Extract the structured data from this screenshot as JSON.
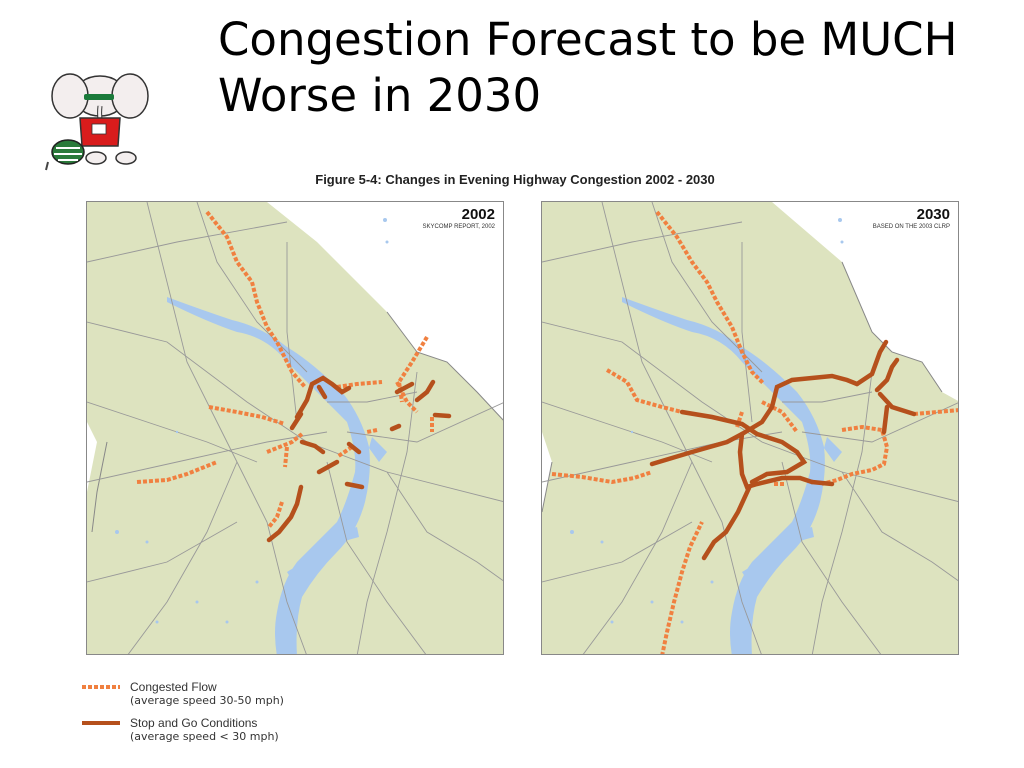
{
  "slide": {
    "title_line1": "Congestion Forecast to be MUCH",
    "title_line2": "Worse in 2030"
  },
  "figure": {
    "caption": "Figure 5-4: Changes in Evening Highway Congestion 2002 - 2030",
    "panels": [
      {
        "year": "2002",
        "source": "SKYCOMP REPORT, 2002"
      },
      {
        "year": "2030",
        "source": "BASED ON THE 2003 CLRP"
      }
    ]
  },
  "legend": {
    "items": [
      {
        "label": "Congested Flow",
        "detail": "(average speed 30-50 mph)",
        "style": "dashed",
        "color": "#F08040"
      },
      {
        "label": "Stop and Go Conditions",
        "detail": "(average speed < 30 mph)",
        "style": "solid",
        "color": "#B5501C"
      }
    ]
  },
  "colors": {
    "land": "#DDE3BF",
    "water": "#A8C8EE",
    "roads": "#999999",
    "congested": "#F08040",
    "stop_and_go": "#B5501C"
  }
}
